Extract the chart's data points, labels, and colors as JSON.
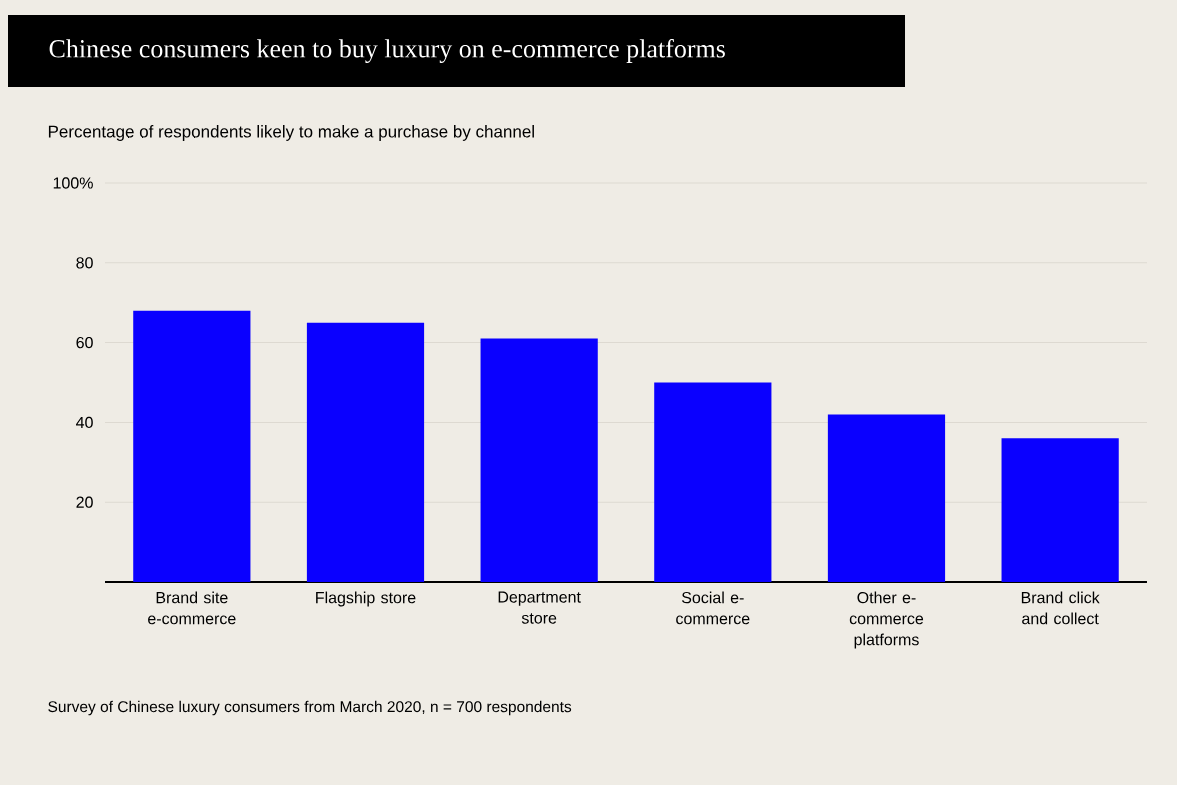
{
  "chart_data": {
    "type": "bar",
    "title": "Chinese consumers keen to buy luxury on e-commerce platforms",
    "subtitle": "Percentage of respondents likely to make a purchase by channel",
    "categories": [
      "Brand site e-commerce",
      "Flagship store",
      "Department store",
      "Social e-commerce",
      "Other e-commerce platforms",
      "Brand click and collect"
    ],
    "values": [
      68,
      65,
      61,
      50,
      42,
      36
    ],
    "color": "#0a00ff",
    "ylim": [
      0,
      100
    ],
    "yticks": [
      20,
      40,
      60,
      80,
      {
        "value": 100,
        "label": "100%"
      }
    ],
    "grid": "y",
    "annotations": [
      "Survey of Chinese luxury consumers from March 2020, n = 700 respondents"
    ]
  }
}
